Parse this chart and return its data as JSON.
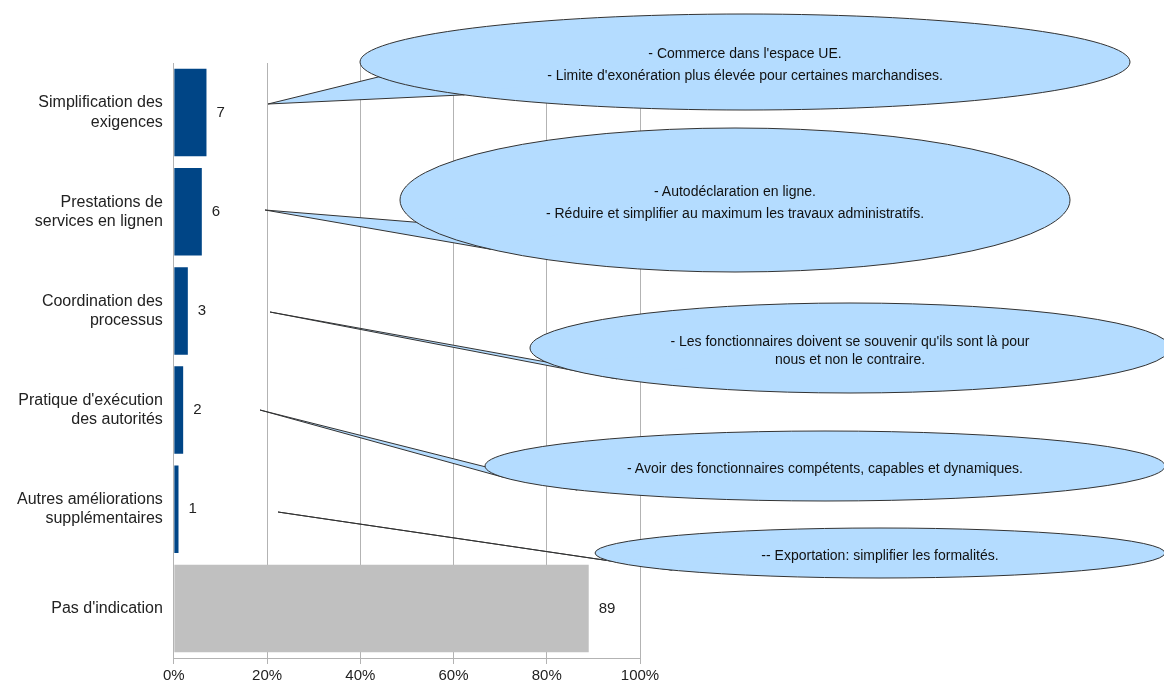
{
  "chart_data": {
    "type": "bar",
    "orientation": "horizontal",
    "categories": [
      "Simplification des exigences",
      "Prestations de services en lignen",
      "Coordination des processus",
      "Pratique d'exécution des autorités",
      "Autres améliorations supplémentaires",
      "Pas d'indication"
    ],
    "values": [
      7,
      6,
      3,
      2,
      1,
      89
    ],
    "colors": [
      "#004586",
      "#004586",
      "#004586",
      "#004586",
      "#004586",
      "#c0c0c0"
    ],
    "xlim": [
      0,
      100
    ],
    "xticks": [
      {
        "value": 0,
        "label": "0%"
      },
      {
        "value": 20,
        "label": "20%"
      },
      {
        "value": 40,
        "label": "40%"
      },
      {
        "value": 60,
        "label": "60%"
      },
      {
        "value": 80,
        "label": "80%"
      },
      {
        "value": 100,
        "label": "100%"
      }
    ],
    "grid": "x",
    "data_labels": true,
    "legend": false,
    "annotations": [
      "- Commerce dans l'espace UE.",
      "- Limite d'exonération plus élevée pour certaines marchandises.",
      "- Autodéclaration en ligne.",
      "- Réduire et simplifier au maximum les travaux administratifs.",
      "- Les fonctionnaires doivent se souvenir qu'ils sont là pour nous et non le contraire.",
      "- Avoir des fonctionnaires compétents, capables et dynamiques.",
      "-- Exportation: simplifier les formalités."
    ]
  }
}
